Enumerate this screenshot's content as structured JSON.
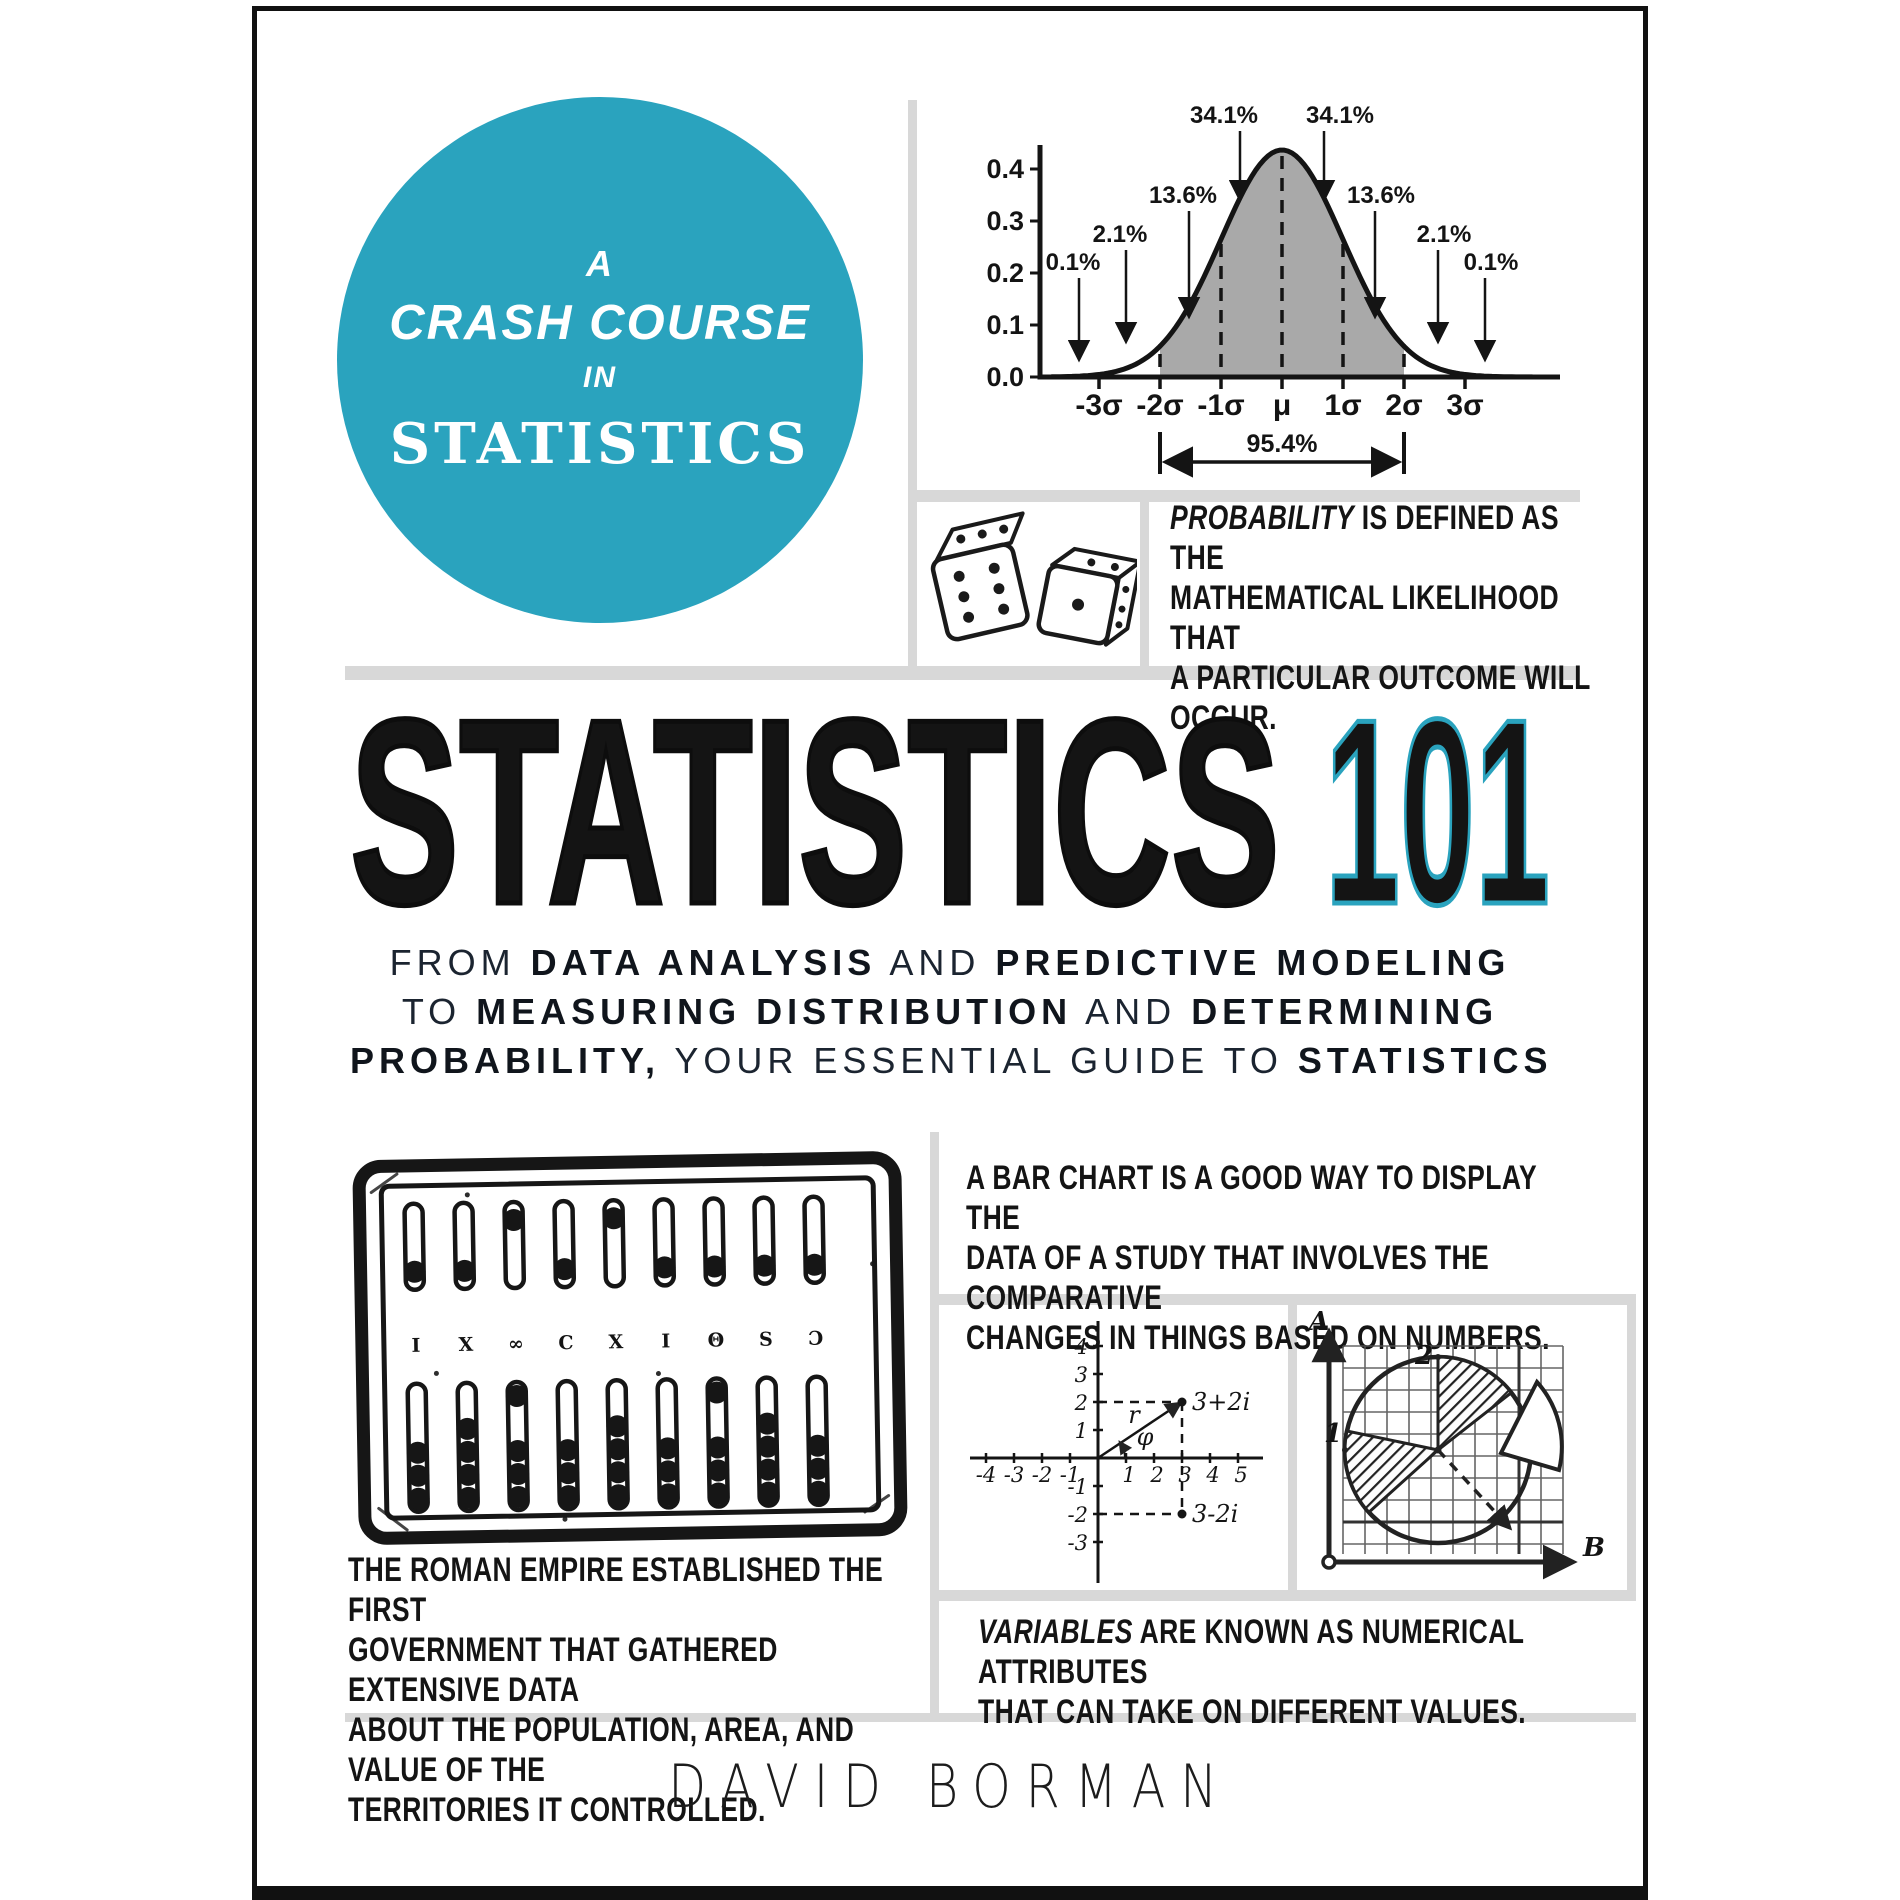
{
  "cover": {
    "badge": {
      "top_word": "A",
      "course_line": "CRASH COURSE",
      "mid_word": "IN",
      "bottom_word": "STATISTICS"
    },
    "title": {
      "word": "STATISTICS",
      "number": "101"
    },
    "subtitle_lines": [
      [
        {
          "t": "FROM "
        },
        {
          "t": "DATA ANALYSIS",
          "b": true
        },
        {
          "t": " AND "
        },
        {
          "t": "PREDICTIVE MODELING",
          "b": true
        }
      ],
      [
        {
          "t": "TO "
        },
        {
          "t": "MEASURING DISTRIBUTION",
          "b": true
        },
        {
          "t": " AND "
        },
        {
          "t": "DETERMINING",
          "b": true
        }
      ],
      [
        {
          "t": "PROBABILITY,",
          "b": true
        },
        {
          "t": " YOUR ESSENTIAL GUIDE TO "
        },
        {
          "t": "STATISTICS",
          "b": true
        }
      ]
    ],
    "notes": {
      "probability": [
        {
          "t": "PROBABILITY",
          "i": true
        },
        {
          "t": " IS DEFINED AS THE\nMATHEMATICAL LIKELIHOOD THAT\nA PARTICULAR OUTCOME WILL\nOCCUR."
        }
      ],
      "bar_chart": [
        {
          "t": "A BAR CHART IS A GOOD WAY TO DISPLAY THE\nDATA OF A STUDY THAT INVOLVES THE COMPARATIVE\nCHANGES IN THINGS BASED ON NUMBERS."
        }
      ],
      "roman": [
        {
          "t": "THE ROMAN EMPIRE ESTABLISHED THE FIRST\nGOVERNMENT THAT GATHERED EXTENSIVE DATA\nABOUT THE POPULATION, AREA, AND VALUE OF THE\nTERRITORIES IT CONTROLLED."
        }
      ],
      "variables": [
        {
          "t": "VARIABLES",
          "i": true
        },
        {
          "t": " ARE KNOWN AS NUMERICAL ATTRIBUTES\nTHAT CAN TAKE ON DIFFERENT VALUES."
        }
      ]
    },
    "author": "DAVID BORMAN",
    "abacus_marks": [
      "I",
      "X",
      "∞",
      "C",
      "X",
      "I",
      "Θ",
      "S",
      "Ɔ"
    ],
    "colors": {
      "accent": "#2aa3be",
      "divider": "#d8d8d8",
      "ink": "#141414",
      "shade": "#a9a9a9"
    }
  },
  "chart_data": [
    {
      "panel": "normal-distribution",
      "type": "area",
      "title": "Normal distribution bell curve with empirical rule percentages",
      "xlabel": "",
      "ylabel": "",
      "x_tick_labels": [
        "-3σ",
        "-2σ",
        "-1σ",
        "μ",
        "1σ",
        "2σ",
        "3σ"
      ],
      "y_tick_labels": [
        "0.0",
        "0.1",
        "0.2",
        "0.3",
        "0.4"
      ],
      "ylim": [
        0,
        0.45
      ],
      "segment_labels": [
        "0.1%",
        "2.1%",
        "13.6%",
        "34.1%",
        "34.1%",
        "13.6%",
        "2.1%",
        "0.1%"
      ],
      "segment_values": [
        0.1,
        2.1,
        13.6,
        34.1,
        34.1,
        13.6,
        2.1,
        0.1
      ],
      "shaded_interval": {
        "from": "-2σ",
        "to": "2σ",
        "label": "95.4%",
        "value": 95.4
      },
      "grid": false,
      "legend": "none"
    },
    {
      "panel": "complex-plane",
      "type": "scatter",
      "x_ticks": [
        -4,
        -3,
        -2,
        -1,
        1,
        2,
        3,
        4,
        5
      ],
      "y_ticks": [
        4,
        3,
        2,
        1,
        -1,
        -2,
        -3
      ],
      "points": [
        {
          "x": 3,
          "y": 2,
          "label": "3+2i"
        },
        {
          "x": 3,
          "y": -2,
          "label": "3-2i"
        }
      ],
      "annotations": [
        "r",
        "φ"
      ]
    },
    {
      "panel": "pie-sketch",
      "type": "pie",
      "axis_labels": {
        "vertical": "A",
        "horizontal": "B"
      },
      "slice_labels": [
        "1",
        "2"
      ],
      "slices": [
        {
          "label": "2",
          "hatched": true
        },
        {
          "label": "1",
          "hatched": true
        },
        {
          "label": "",
          "exploded": true
        }
      ]
    }
  ]
}
